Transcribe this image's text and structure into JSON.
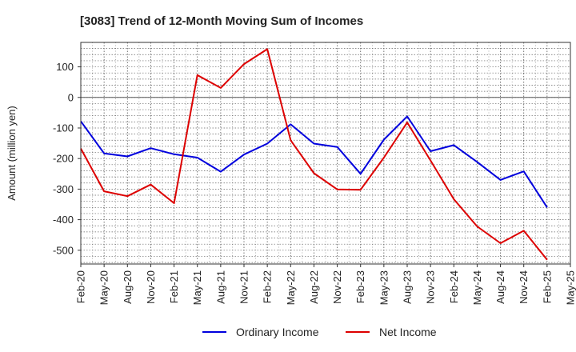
{
  "chart_data": {
    "type": "line",
    "title": "[3083]  Trend of 12-Month Moving Sum of Incomes",
    "xlabel": "",
    "ylabel": "Amount (million yen)",
    "ylim": [
      -545,
      180
    ],
    "yticks": [
      100,
      0,
      -100,
      -200,
      -300,
      -400,
      -500
    ],
    "ytick_labels": [
      "100",
      "0",
      "-100",
      "-200",
      "-300",
      "-400",
      "-500"
    ],
    "categories": [
      "Feb-20",
      "May-20",
      "Aug-20",
      "Nov-20",
      "Feb-21",
      "May-21",
      "Aug-21",
      "Nov-21",
      "Feb-22",
      "May-22",
      "Aug-22",
      "Nov-22",
      "Feb-23",
      "May-23",
      "Aug-23",
      "Nov-23",
      "Feb-24",
      "May-24",
      "Aug-24",
      "Nov-24",
      "Feb-25",
      "May-25"
    ],
    "series": [
      {
        "name": "Ordinary Income",
        "color": "#0000dd",
        "values": [
          -78,
          -183,
          -193,
          -166,
          -186,
          -197,
          -243,
          -187,
          -151,
          -88,
          -151,
          -162,
          -250,
          -138,
          -62,
          -176,
          -156,
          -211,
          -270,
          -242,
          -360,
          null
        ]
      },
      {
        "name": "Net Income",
        "color": "#dd0000",
        "values": [
          -167,
          -307,
          -323,
          -285,
          -346,
          73,
          31,
          109,
          158,
          -140,
          -248,
          -301,
          -302,
          -197,
          -82,
          -206,
          -333,
          -422,
          -477,
          -436,
          -531,
          null
        ]
      }
    ],
    "grid": true,
    "legend_position": "bottom-center"
  }
}
